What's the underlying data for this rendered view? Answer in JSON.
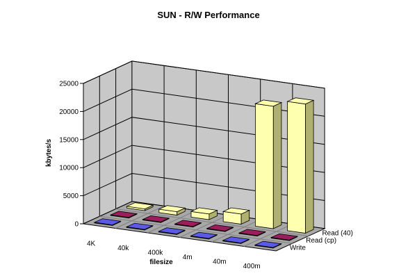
{
  "chart_data": {
    "type": "bar",
    "title": "SUN - R/W Performance",
    "xlabel": "filesize",
    "ylabel": "kbytes/s",
    "ylim": [
      0,
      25000
    ],
    "yticks": [
      "0",
      "5000",
      "10000",
      "15000",
      "20000",
      "25000"
    ],
    "categories": [
      "4K",
      "40k",
      "400k",
      "4m",
      "40m",
      "400m"
    ],
    "series": [
      {
        "name": "Read (40)",
        "values": [
          300,
          600,
          1000,
          1800,
          21800,
          23000
        ]
      },
      {
        "name": "Read (cp)",
        "values": [
          100,
          100,
          100,
          100,
          100,
          100
        ]
      },
      {
        "name": "Write",
        "values": [
          100,
          100,
          100,
          100,
          100,
          100
        ]
      }
    ],
    "grid": true,
    "legend": "none",
    "colors": {
      "wall": "#c8c8c8",
      "floor": "#a8a8a8",
      "floor_stroke": "#808080",
      "grid": "#000000",
      "series": [
        "#ffffb0",
        "#9a1e5c",
        "#5a5ae6"
      ],
      "series_side": [
        "#b0b070",
        "#5e0d33",
        "#1a1a80"
      ]
    }
  }
}
